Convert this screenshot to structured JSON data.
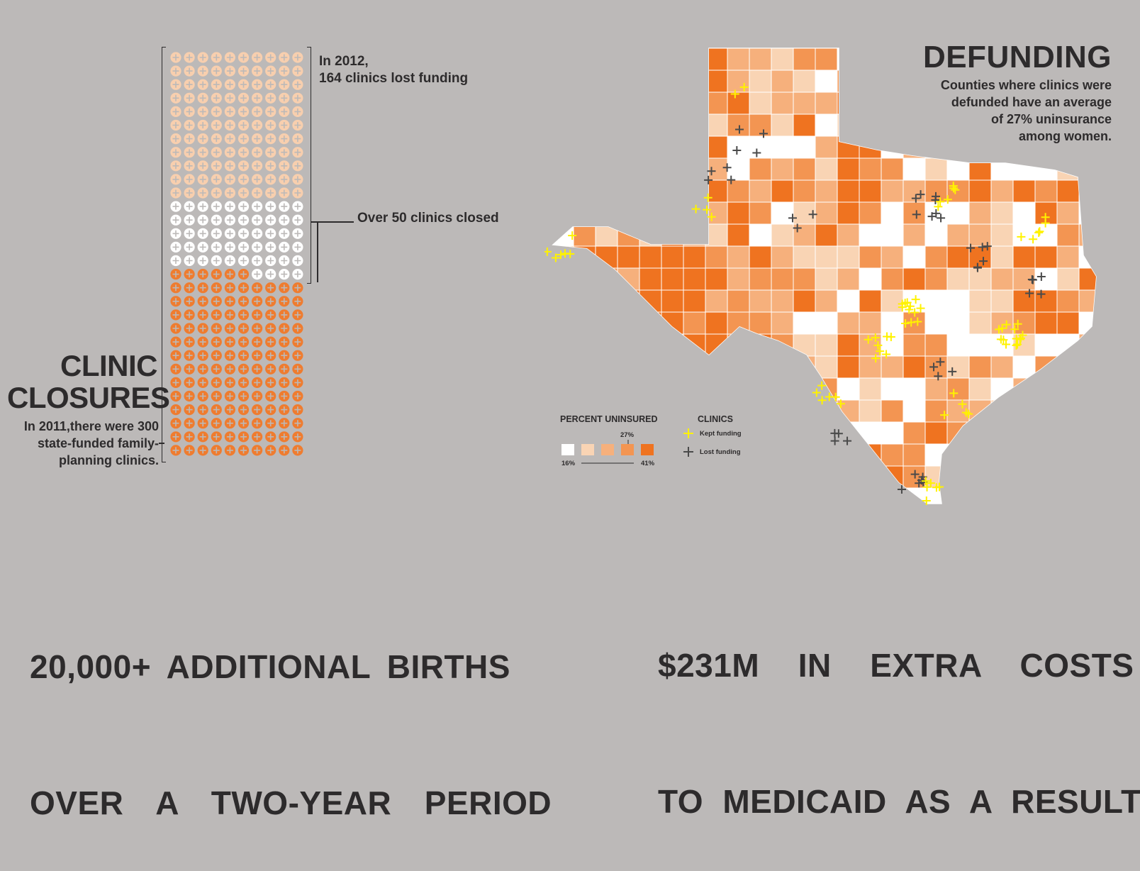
{
  "clinic_closures": {
    "title_line1": "CLINIC",
    "title_line2": "CLOSURES",
    "desc_line1": "In 2011,there were 300",
    "desc_line2": "state-funded family-",
    "desc_line3": "planning clinics.",
    "note_2012_line1": "In 2012,",
    "note_2012_line2": "164 clinics lost funding",
    "note_closed": "Over 50 clinics closed",
    "grid_columns": 10,
    "grid_total": 300,
    "rows_lost_funding": 11,
    "rows_closed": 6,
    "rows_funded": 13,
    "colors": {
      "lost_funding": "#f8cfae",
      "closed": "#ffffff",
      "funded": "#ef7c2f"
    }
  },
  "bottom_left": {
    "line1": "20,000+ ADDITIONAL BIRTHS",
    "line2": "OVER  A  TWO-YEAR  PERIOD"
  },
  "bottom_right": {
    "line1": "$231M  IN  EXTRA  COSTS",
    "line2": "TO MEDICAID AS A RESULT"
  },
  "defunding": {
    "title": "DEFUNDING",
    "desc_line1": "Counties where clinics were",
    "desc_line2": "defunded have an average",
    "desc_line3": "of 27% uninsurance",
    "desc_line4": "among women."
  },
  "legend": {
    "percent_title": "PERCENT UNINSURED",
    "mid_label": "27%",
    "min_label": "16%",
    "max_label": "41%",
    "clinics_title": "CLINICS",
    "kept_label": "Kept funding",
    "lost_label": "Lost funding",
    "scale_colors": [
      "#ffffff",
      "#f9d4b4",
      "#f6b07c",
      "#f39552",
      "#ef7320"
    ],
    "kept_color": "#fff200",
    "lost_color": "#4a4a4a"
  }
}
